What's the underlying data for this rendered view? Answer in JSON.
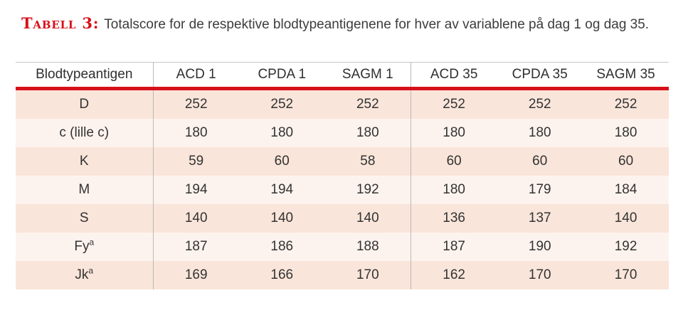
{
  "caption": {
    "label": "Tabell 3:",
    "text": "Totalscore for de respektive blodtypeantigenene for hver av variablene på dag 1 og dag 35."
  },
  "table": {
    "columns": [
      "Blodtypeantigen",
      "ACD 1",
      "CPDA 1",
      "SAGM 1",
      "ACD 35",
      "CPDA 35",
      "SAGM 35"
    ],
    "rows": [
      {
        "antigen": "D",
        "sup": "",
        "values": [
          "252",
          "252",
          "252",
          "252",
          "252",
          "252"
        ]
      },
      {
        "antigen": "c (lille c)",
        "sup": "",
        "values": [
          "180",
          "180",
          "180",
          "180",
          "180",
          "180"
        ]
      },
      {
        "antigen": "K",
        "sup": "",
        "values": [
          "59",
          "60",
          "58",
          "60",
          "60",
          "60"
        ]
      },
      {
        "antigen": "M",
        "sup": "",
        "values": [
          "194",
          "194",
          "192",
          "180",
          "179",
          "184"
        ]
      },
      {
        "antigen": "S",
        "sup": "",
        "values": [
          "140",
          "140",
          "140",
          "136",
          "137",
          "140"
        ]
      },
      {
        "antigen": "Fy",
        "sup": "a",
        "values": [
          "187",
          "186",
          "188",
          "187",
          "190",
          "192"
        ]
      },
      {
        "antigen": "Jk",
        "sup": "a",
        "values": [
          "169",
          "166",
          "170",
          "162",
          "170",
          "170"
        ]
      }
    ]
  },
  "colors": {
    "accent_red": "#d8101a",
    "row_dark": "#f9e5da",
    "row_light": "#fdf3ee"
  }
}
